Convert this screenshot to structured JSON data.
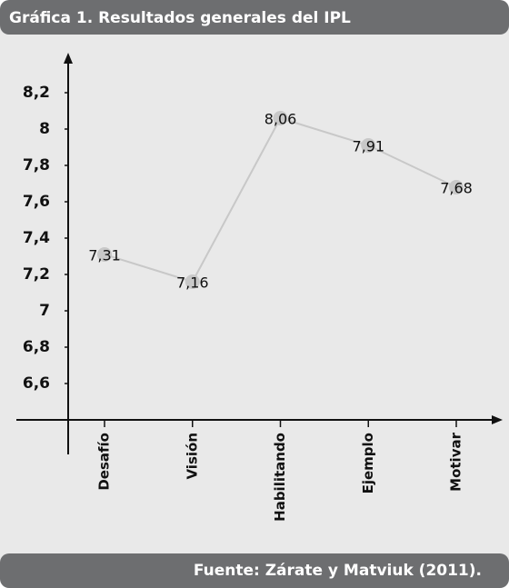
{
  "chart_data": {
    "type": "line",
    "title": "Gráfica 1. Resultados generales del IPL",
    "source": "Fuente: Zárate y Matviuk (2011).",
    "categories": [
      "Desafío",
      "Visión",
      "Habilitando",
      "Ejemplo",
      "Motivar"
    ],
    "values": [
      7.31,
      7.16,
      8.06,
      7.91,
      7.68
    ],
    "value_labels": [
      "7,31",
      "7,16",
      "8,06",
      "7,91",
      "7,68"
    ],
    "color": "#c8c8c8",
    "ylim": [
      6.4,
      8.4
    ],
    "yticks": [
      {
        "value": 6.6,
        "label": "6,6"
      },
      {
        "value": 6.8,
        "label": "6,8"
      },
      7,
      {
        "value": 7.2,
        "label": "7,2"
      },
      {
        "value": 7.4,
        "label": "7,4"
      },
      {
        "value": 7.6,
        "label": "7,6"
      },
      {
        "value": 7.8,
        "label": "7,8"
      },
      8,
      {
        "value": 8.2,
        "label": "8,2"
      }
    ]
  }
}
